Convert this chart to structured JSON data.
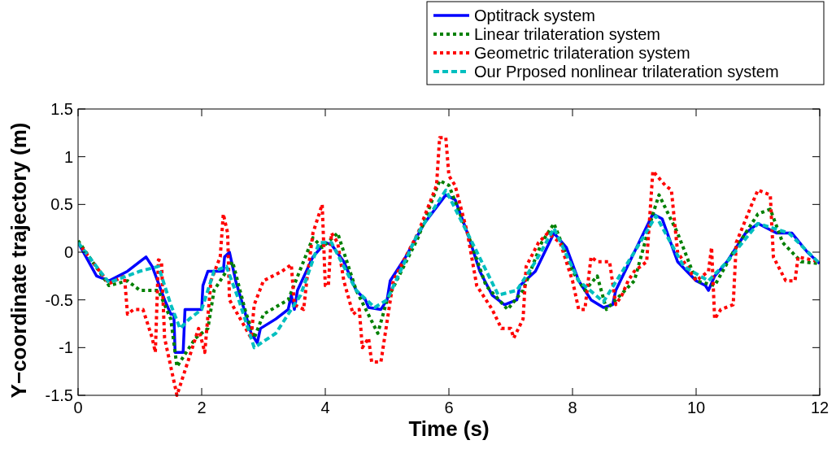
{
  "chart_data": {
    "type": "line",
    "xlabel": "Time (s)",
    "ylabel": "Y−coordinate trajectory (m)",
    "xlim": [
      0,
      12
    ],
    "ylim": [
      -1.5,
      1.5
    ],
    "xticks": [
      0,
      2,
      4,
      6,
      8,
      10,
      12
    ],
    "yticks": [
      -1.5,
      -1,
      -0.5,
      0,
      0.5,
      1,
      1.5
    ],
    "grid": false,
    "legend": "top right",
    "series": [
      {
        "name": "Optitrack system",
        "color": "#0000ff",
        "line_style": "solid",
        "x": [
          0,
          0.3,
          0.5,
          0.8,
          1.0,
          1.1,
          1.2,
          1.4,
          1.5,
          1.55,
          1.57,
          1.7,
          1.73,
          2.0,
          2.02,
          2.1,
          2.35,
          2.37,
          2.45,
          2.55,
          2.8,
          2.9,
          2.95,
          3.2,
          3.4,
          3.45,
          3.5,
          3.55,
          3.8,
          4.0,
          4.1,
          4.3,
          4.5,
          4.65,
          4.7,
          4.9,
          5.0,
          5.05,
          5.3,
          5.6,
          5.95,
          6.1,
          6.3,
          6.5,
          6.7,
          6.9,
          7.1,
          7.15,
          7.4,
          7.7,
          7.9,
          8.1,
          8.3,
          8.5,
          8.65,
          8.7,
          9.0,
          9.3,
          9.45,
          9.7,
          10.0,
          10.15,
          10.2,
          10.3,
          10.5,
          10.8,
          11.0,
          11.3,
          11.55,
          11.8,
          12
        ],
        "values": [
          0.1,
          -0.25,
          -0.3,
          -0.2,
          -0.1,
          -0.05,
          -0.15,
          -0.5,
          -0.65,
          -0.65,
          -1.05,
          -1.05,
          -0.6,
          -0.6,
          -0.35,
          -0.2,
          -0.2,
          -0.05,
          0,
          -0.3,
          -0.85,
          -0.95,
          -0.8,
          -0.7,
          -0.6,
          -0.45,
          -0.6,
          -0.4,
          -0.05,
          0.1,
          0.08,
          -0.1,
          -0.4,
          -0.5,
          -0.58,
          -0.6,
          -0.5,
          -0.3,
          -0.05,
          0.3,
          0.6,
          0.55,
          0.2,
          -0.2,
          -0.45,
          -0.55,
          -0.5,
          -0.35,
          -0.2,
          0.2,
          0.05,
          -0.3,
          -0.5,
          -0.58,
          -0.55,
          -0.4,
          0,
          0.4,
          0.35,
          -0.1,
          -0.3,
          -0.35,
          -0.4,
          -0.25,
          -0.1,
          0.2,
          0.3,
          0.2,
          0.2,
          0,
          -0.12
        ]
      },
      {
        "name": "Linear trilateration system",
        "color": "#008000",
        "line_style": "dotted",
        "x": [
          0,
          0.5,
          0.8,
          1.0,
          1.3,
          1.5,
          1.6,
          1.75,
          1.9,
          2.1,
          2.2,
          2.5,
          2.7,
          2.85,
          3.0,
          3.4,
          3.8,
          3.95,
          4.2,
          4.5,
          4.85,
          5.0,
          5.5,
          5.85,
          6.0,
          6.3,
          6.6,
          6.95,
          7.2,
          7.5,
          7.7,
          8.0,
          8.2,
          8.4,
          8.55,
          8.7,
          9.0,
          9.3,
          9.4,
          9.7,
          10.0,
          10.3,
          10.6,
          11.0,
          11.2,
          11.4,
          11.7,
          12
        ],
        "values": [
          0.12,
          -0.35,
          -0.3,
          -0.4,
          -0.4,
          -0.7,
          -1.2,
          -1.05,
          -0.9,
          -0.8,
          -0.4,
          -0.1,
          -0.6,
          -0.9,
          -0.65,
          -0.5,
          0.15,
          0.05,
          0.2,
          -0.4,
          -0.85,
          -0.5,
          0.15,
          0.75,
          0.7,
          0.2,
          -0.35,
          -0.6,
          -0.4,
          0.1,
          0.3,
          -0.2,
          -0.4,
          -0.25,
          -0.6,
          -0.5,
          -0.3,
          0.4,
          0.6,
          0.2,
          -0.3,
          -0.35,
          0,
          0.4,
          0.45,
          0.1,
          -0.1,
          -0.12
        ]
      },
      {
        "name": "Geometric trilateration system",
        "color": "#ff0000",
        "line_style": "dotted",
        "x": [
          0,
          0.5,
          0.75,
          0.8,
          0.9,
          1.05,
          1.2,
          1.25,
          1.3,
          1.35,
          1.4,
          1.6,
          1.8,
          1.95,
          2.05,
          2.15,
          2.3,
          2.35,
          2.42,
          2.45,
          2.8,
          2.85,
          3.0,
          3.3,
          3.45,
          3.5,
          3.65,
          3.7,
          3.8,
          3.95,
          4.0,
          4.05,
          4.1,
          4.2,
          4.3,
          4.45,
          4.55,
          4.6,
          4.7,
          4.75,
          4.9,
          5.1,
          5.5,
          5.8,
          5.85,
          5.95,
          6.0,
          6.1,
          6.3,
          6.45,
          6.7,
          6.85,
          7.0,
          7.05,
          7.2,
          7.25,
          7.45,
          7.6,
          7.8,
          8.0,
          8.1,
          8.2,
          8.3,
          8.4,
          8.6,
          8.7,
          8.8,
          8.9,
          9.0,
          9.2,
          9.3,
          9.5,
          9.6,
          9.7,
          10.0,
          10.2,
          10.25,
          10.3,
          10.4,
          10.6,
          10.65,
          10.9,
          11.0,
          11.2,
          11.25,
          11.45,
          11.6,
          11.65,
          12
        ],
        "values": [
          0.1,
          -0.33,
          -0.25,
          -0.65,
          -0.6,
          -0.6,
          -0.9,
          -1.05,
          -0.08,
          -0.1,
          -0.9,
          -1.5,
          -1.1,
          -0.8,
          -1.05,
          -0.3,
          -0.05,
          0.4,
          0.2,
          -0.5,
          -0.9,
          -0.55,
          -0.3,
          -0.2,
          -0.13,
          -0.55,
          -0.6,
          -0.3,
          0.2,
          0.5,
          -0.35,
          -0.35,
          0.2,
          0.1,
          -0.3,
          -0.65,
          -0.6,
          -1.0,
          -0.9,
          -1.15,
          -1.15,
          -0.3,
          0.2,
          0.7,
          1.2,
          1.2,
          0.8,
          0.7,
          0.2,
          -0.35,
          -0.6,
          -0.8,
          -0.8,
          -0.9,
          -0.7,
          -0.15,
          0.1,
          0.2,
          0.1,
          -0.3,
          -0.6,
          -0.6,
          -0.05,
          -0.1,
          -0.1,
          -0.55,
          -0.45,
          -0.3,
          -0.2,
          -0.1,
          0.85,
          0.7,
          0.65,
          0,
          -0.3,
          -0.2,
          0.05,
          -0.7,
          -0.6,
          -0.55,
          0.1,
          0.5,
          0.65,
          0.6,
          -0.05,
          -0.3,
          -0.3,
          -0.05,
          -0.1
        ]
      },
      {
        "name": "Our Prposed nonlinear trilateration system",
        "color": "#00bfbf",
        "line_style": "dashed",
        "x": [
          0,
          0.5,
          1.0,
          1.3,
          1.5,
          1.65,
          1.8,
          2.0,
          2.2,
          2.4,
          2.6,
          2.85,
          3.2,
          3.6,
          3.9,
          4.1,
          4.5,
          4.8,
          5.0,
          5.5,
          5.95,
          6.3,
          6.8,
          7.1,
          7.4,
          7.7,
          8.1,
          8.5,
          9.0,
          9.35,
          9.8,
          10.2,
          10.5,
          11.0,
          11.5,
          12
        ],
        "values": [
          0.1,
          -0.32,
          -0.2,
          -0.15,
          -0.55,
          -0.8,
          -0.7,
          -0.6,
          -0.2,
          -0.15,
          -0.5,
          -1.0,
          -0.85,
          -0.45,
          0.1,
          0.1,
          -0.4,
          -0.58,
          -0.5,
          0.2,
          0.65,
          0.2,
          -0.45,
          -0.4,
          -0.1,
          0.25,
          -0.3,
          -0.52,
          0,
          0.38,
          -0.15,
          -0.3,
          -0.1,
          0.3,
          0.2,
          -0.12
        ]
      }
    ]
  }
}
